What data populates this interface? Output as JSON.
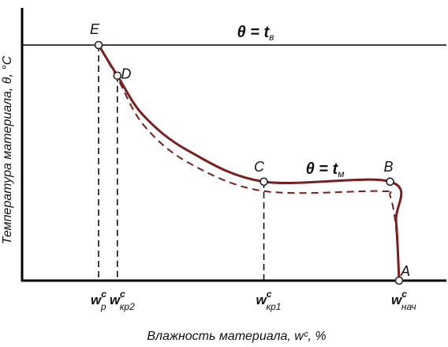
{
  "chart_data": {
    "type": "line",
    "xlabel": "Влажность материала, wᶜ, %",
    "ylabel": "Температура материала, θ, °C",
    "air_line_label": {
      "pre": "θ = ",
      "main": "t",
      "sub": "в"
    },
    "plateau_label": {
      "pre": "θ = ",
      "main": "t",
      "sub": "м"
    },
    "points": [
      {
        "name": "E",
        "x": 0.0,
        "y": 1.0
      },
      {
        "name": "D",
        "x": 0.0625,
        "y": 0.87
      },
      {
        "name": "C",
        "x": 0.55,
        "y": 0.42
      },
      {
        "name": "B",
        "x": 0.97,
        "y": 0.42
      },
      {
        "name": "A",
        "x": 1.0,
        "y": 0.0
      }
    ],
    "x_ticks": [
      {
        "main": "w",
        "sup": "c",
        "sub": "р",
        "x": 0.0
      },
      {
        "main": "w",
        "sup": "c",
        "sub": "кр2",
        "x": 0.0625
      },
      {
        "main": "w",
        "sup": "c",
        "sub": "кр1",
        "x": 0.55
      },
      {
        "main": "w",
        "sup": "c",
        "sub": "нач",
        "x": 1.0
      }
    ],
    "series": [
      {
        "style": "solid",
        "x": [
          1.0,
          0.99,
          0.97,
          0.55,
          0.3,
          0.15,
          0.0625,
          0.0
        ],
        "y": [
          0.0,
          0.25,
          0.42,
          0.42,
          0.55,
          0.7,
          0.87,
          1.0
        ]
      },
      {
        "style": "dashed",
        "x": [
          1.0,
          0.99,
          0.97,
          0.94,
          0.55,
          0.3,
          0.15,
          0.0625,
          0.0
        ],
        "y": [
          0.0,
          0.22,
          0.36,
          0.38,
          0.38,
          0.5,
          0.66,
          0.86,
          1.0
        ]
      }
    ],
    "colors": {
      "curve": "#7a1e1e",
      "axes": "#000000",
      "guides": "#000000"
    }
  }
}
